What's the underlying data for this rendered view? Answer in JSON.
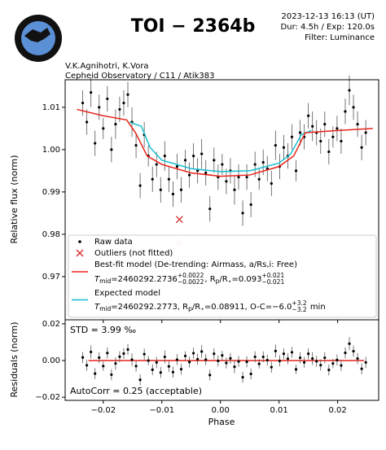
{
  "header": {
    "title": "TOI − 2364b",
    "date": "2023-12-13 16:13 (UT)",
    "exposure": "Dur: 4.5h / Exp: 120.0s",
    "filter": "Filter: Luminance",
    "observers": "V.K.Agnihotri, K.Vora",
    "observatory": "Cepheid Observatory / C11 / Atik383"
  },
  "chart_data": [
    {
      "type": "scatter",
      "ylabel": "Relative flux (norm)",
      "xlim": [
        -0.0265,
        0.027
      ],
      "ylim": [
        0.9598,
        1.0165
      ],
      "xticks": [
        -0.02,
        -0.01,
        0,
        0.01,
        0.02
      ],
      "yticks": [
        0.97,
        0.98,
        0.99,
        {
          "value": 1,
          "label": "1.00"
        },
        1.01
      ],
      "series": [
        {
          "name": "Raw data",
          "color": "#000000",
          "x": [
            -0.0235,
            -0.0228,
            -0.0221,
            -0.0214,
            -0.0207,
            -0.02,
            -0.0193,
            -0.0186,
            -0.0179,
            -0.0172,
            -0.0165,
            -0.0158,
            -0.0151,
            -0.0144,
            -0.0137,
            -0.013,
            -0.0123,
            -0.0116,
            -0.0109,
            -0.0102,
            -0.0095,
            -0.0088,
            -0.0081,
            -0.0074,
            -0.0067,
            -0.006,
            -0.0053,
            -0.0046,
            -0.0039,
            -0.0032,
            -0.0025,
            -0.0018,
            -0.0011,
            -0.0004,
            0.0003,
            0.001,
            0.0017,
            0.0024,
            0.0031,
            0.0038,
            0.0045,
            0.0052,
            0.0059,
            0.0066,
            0.0073,
            0.008,
            0.0087,
            0.0094,
            0.0101,
            0.0108,
            0.0115,
            0.0122,
            0.0129,
            0.0136,
            0.0143,
            0.015,
            0.0157,
            0.0164,
            0.0171,
            0.0178,
            0.0185,
            0.0192,
            0.0199,
            0.0206,
            0.0213,
            0.022,
            0.0227,
            0.0234,
            0.0241,
            0.0248
          ],
          "values": [
            1.011,
            1.0065,
            1.0135,
            1.0015,
            1.01,
            1.005,
            1.012,
            1.0,
            1.006,
            1.0095,
            1.011,
            1.013,
            1.0065,
            1.001,
            0.9915,
            1.0035,
            0.9985,
            0.993,
            0.9965,
            0.9905,
            0.9985,
            0.993,
            0.9895,
            0.996,
            0.9905,
            0.9975,
            0.994,
            0.9985,
            0.995,
            0.999,
            0.9945,
            0.986,
            0.9975,
            0.9935,
            0.9965,
            0.9925,
            0.995,
            0.9905,
            0.9935,
            0.985,
            0.9935,
            0.987,
            0.9965,
            0.993,
            0.997,
            0.9955,
            0.992,
            1.001,
            0.996,
            1.0005,
            0.9985,
            1.003,
            0.995,
            1.004,
            1.003,
            1.008,
            1.0055,
            1.004,
            1.002,
            1.006,
            0.9995,
            1.003,
            1.005,
            1.002,
            1.009,
            1.014,
            1.01,
            1.006,
            1.0005,
            1.004
          ],
          "errors": [
            0.003,
            0.003,
            0.0035,
            0.003,
            0.003,
            0.0025,
            0.003,
            0.003,
            0.0035,
            0.003,
            0.003,
            0.003,
            0.0035,
            0.003,
            0.003,
            0.003,
            0.0025,
            0.003,
            0.003,
            0.003,
            0.0035,
            0.003,
            0.003,
            0.003,
            0.003,
            0.0025,
            0.003,
            0.003,
            0.003,
            0.0035,
            0.003,
            0.003,
            0.003,
            0.003,
            0.0025,
            0.003,
            0.003,
            0.0035,
            0.003,
            0.003,
            0.003,
            0.003,
            0.003,
            0.0025,
            0.003,
            0.003,
            0.003,
            0.0035,
            0.003,
            0.003,
            0.003,
            0.003,
            0.0025,
            0.003,
            0.003,
            0.003,
            0.0035,
            0.003,
            0.003,
            0.003,
            0.003,
            0.0025,
            0.003,
            0.003,
            0.003,
            0.0035,
            0.003,
            0.003,
            0.003,
            0.003
          ]
        },
        {
          "name": "Outliers (not fitted)",
          "colors": [
            "#d62728",
            "#f2b4b4"
          ],
          "x": [
            -0.007,
            -0.007
          ],
          "values": [
            0.9835,
            0.978
          ]
        },
        {
          "name": "Best-fit model (De-trending: Airmass, a/Rs,i: Free)",
          "color": "#e8231b",
          "label_parts": [
            "T",
            "mid",
            "=2460292.2736",
            "+0.0022",
            "−0.0022",
            ", R",
            "p",
            "/R",
            "⋆",
            "=0.093",
            "+0.021",
            "−0.021"
          ],
          "x": [
            -0.0245,
            -0.02,
            -0.016,
            -0.0145,
            -0.0125,
            -0.01,
            -0.005,
            0,
            0.005,
            0.01,
            0.0125,
            0.0145,
            0.02,
            0.026
          ],
          "values": [
            1.0095,
            1.008,
            1.007,
            1.004,
            0.9985,
            0.9965,
            0.9945,
            0.9937,
            0.994,
            0.996,
            0.9985,
            1.004,
            1.0045,
            1.005
          ]
        },
        {
          "name": "Expected model",
          "color": "#17becf",
          "label_parts": [
            "T",
            "mid",
            "=2460292.2773, R",
            "p",
            "/R",
            "⋆",
            "=0.08911, O-C=−6.0",
            "+3.2",
            "−3.2",
            " min"
          ],
          "x": [
            -0.0155,
            -0.0135,
            -0.012,
            -0.01,
            -0.005,
            0,
            0.005,
            0.01,
            0.012,
            0.0138,
            0.0155
          ],
          "values": [
            1.0065,
            1.0055,
            1.0005,
            0.9975,
            0.9955,
            0.9948,
            0.995,
            0.9968,
            0.999,
            1.0035,
            1.0045
          ]
        }
      ]
    },
    {
      "type": "scatter",
      "ylabel": "Residuals (norm)",
      "xlabel": "Phase",
      "std": "STD = 3.99 ‰",
      "autocorr": "AutoCorr = 0.25 (acceptable)",
      "xlim": [
        -0.0265,
        0.027
      ],
      "ylim": [
        -0.0217,
        0.0222
      ],
      "xticks": [
        {
          "value": -0.02,
          "label": "−0.02"
        },
        {
          "value": -0.01,
          "label": "−0.01"
        },
        {
          "value": 0,
          "label": "0.00"
        },
        0.01,
        0.02
      ],
      "yticks": [
        {
          "value": -0.02,
          "label": "−0.02"
        },
        {
          "value": 0,
          "label": "0.00"
        },
        0.02
      ],
      "series": [
        {
          "color": "#000000",
          "values": [
            0.0017,
            -0.0026,
            0.0047,
            -0.0071,
            0.0016,
            -0.003,
            0.0041,
            -0.0077,
            -0.0016,
            0.0021,
            0.0038,
            0.006,
            0.0005,
            -0.003,
            -0.0105,
            0.0035,
            0.0,
            -0.005,
            -0.001,
            -0.0065,
            0.002,
            -0.0032,
            -0.0063,
            0.0005,
            -0.0047,
            0.0025,
            -0.0008,
            0.004,
            0.0007,
            0.0049,
            0.0005,
            -0.0079,
            0.0037,
            -0.0002,
            0.0028,
            -0.0013,
            0.0012,
            -0.0034,
            -0.0005,
            -0.0091,
            -0.0007,
            -0.0073,
            0.002,
            -0.0018,
            0.002,
            0.0002,
            -0.0036,
            0.0052,
            -0.0002,
            0.0037,
            0.001,
            0.0045,
            -0.0048,
            0.0015,
            -0.001,
            0.0037,
            0.0011,
            -0.0004,
            -0.0025,
            0.0015,
            -0.0051,
            -0.0016,
            0.0003,
            -0.0027,
            0.0042,
            0.0092,
            0.0051,
            0.0011,
            -0.0045,
            -0.001
          ]
        },
        {
          "color": "#e8231b",
          "x": [
            -0.0225,
            0.0245
          ],
          "values": [
            0,
            0
          ]
        }
      ]
    }
  ]
}
